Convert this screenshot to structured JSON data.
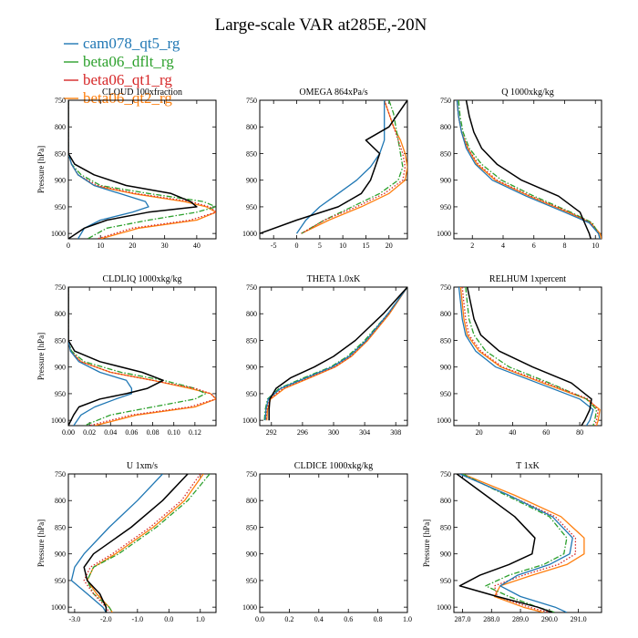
{
  "title": "Large-scale VAR at285E,-20N",
  "legend": [
    {
      "name": "cam078_qt5_rg",
      "color": "#1f77b4",
      "style": "solid"
    },
    {
      "name": "beta06_dflt_rg",
      "color": "#2ca02c",
      "style": "dashdot"
    },
    {
      "name": "beta06_qt1_rg",
      "color": "#d62728",
      "style": "dotted"
    },
    {
      "name": "beta06_qt2_rg",
      "color": "#ff7f0e",
      "style": "solid"
    }
  ],
  "obs_color": "#000000",
  "chart_data": [
    {
      "type": "line",
      "title": "CLOUD 100xfraction",
      "ylabel": "Pressure [hPa]",
      "xlim": [
        0,
        46
      ],
      "ylim": [
        1010,
        750
      ],
      "xticks": [
        0,
        10,
        20,
        30,
        40
      ],
      "xtick_labels": [
        "0",
        "10",
        "20",
        "30",
        "40"
      ],
      "yticks": [
        750,
        800,
        850,
        900,
        950,
        1000
      ],
      "ytick_labels": [
        "750",
        "800",
        "850",
        "900",
        "950",
        "1000"
      ],
      "y": [
        750,
        800,
        850,
        870,
        890,
        910,
        925,
        940,
        950,
        960,
        975,
        990,
        1010
      ],
      "series": [
        {
          "name": "cam078_qt5_rg",
          "values": [
            0,
            0,
            0,
            1,
            3,
            8,
            16,
            24,
            25,
            20,
            10,
            5,
            3
          ]
        },
        {
          "name": "beta06_dflt_rg",
          "values": [
            0,
            0,
            0,
            1,
            4,
            10,
            25,
            42,
            46,
            40,
            25,
            12,
            6
          ]
        },
        {
          "name": "beta06_qt1_rg",
          "values": [
            0,
            0,
            0,
            1,
            3,
            9,
            21,
            38,
            44,
            46,
            38,
            20,
            9
          ]
        },
        {
          "name": "beta06_qt2_rg",
          "values": [
            0,
            0,
            0,
            1,
            3,
            8,
            20,
            36,
            43,
            46,
            40,
            22,
            10
          ]
        }
      ],
      "obs": [
        0,
        0,
        0,
        2,
        8,
        18,
        32,
        38,
        40,
        25,
        12,
        5,
        0
      ]
    },
    {
      "type": "line",
      "title": "OMEGA 864xPa/s",
      "ylabel": "",
      "xlim": [
        -8,
        24
      ],
      "ylim": [
        1010,
        750
      ],
      "xticks": [
        -5,
        0,
        5,
        10,
        15,
        20
      ],
      "xtick_labels": [
        "-5",
        "0",
        "5",
        "10",
        "15",
        "20"
      ],
      "yticks": [
        750,
        800,
        850,
        900,
        950,
        1000
      ],
      "ytick_labels": [
        "750",
        "800",
        "850",
        "900",
        "950",
        "1000"
      ],
      "y": [
        750,
        775,
        800,
        825,
        850,
        875,
        900,
        925,
        950,
        975,
        1000
      ],
      "series": [
        {
          "name": "cam078_qt5_rg",
          "values": [
            19,
            19,
            19,
            19,
            18,
            16,
            13,
            9,
            5,
            2,
            0
          ]
        },
        {
          "name": "beta06_dflt_rg",
          "values": [
            20,
            21,
            21.5,
            22,
            22.5,
            23,
            22,
            18,
            12,
            6,
            1
          ]
        },
        {
          "name": "beta06_qt1_rg",
          "values": [
            19,
            20,
            21,
            22,
            23,
            23.5,
            23,
            19,
            13,
            6,
            1
          ]
        },
        {
          "name": "beta06_qt2_rg",
          "values": [
            19,
            20,
            21,
            22.5,
            23.5,
            24,
            23.5,
            20,
            14,
            7,
            1
          ]
        }
      ],
      "obs": [
        24,
        22,
        20,
        15,
        18,
        17,
        16,
        14,
        9,
        0,
        -8
      ]
    },
    {
      "type": "line",
      "title": "Q 1000xkg/kg",
      "ylabel": "",
      "xlim": [
        0.8,
        10.4
      ],
      "ylim": [
        1010,
        750
      ],
      "xticks": [
        2,
        4,
        6,
        8,
        10
      ],
      "xtick_labels": [
        "2",
        "4",
        "6",
        "8",
        "10"
      ],
      "yticks": [
        750,
        800,
        850,
        900,
        950,
        1000
      ],
      "ytick_labels": [
        "750",
        "800",
        "850",
        "900",
        "950",
        "1000"
      ],
      "y": [
        750,
        780,
        810,
        840,
        870,
        900,
        930,
        960,
        980,
        1000,
        1010
      ],
      "series": [
        {
          "name": "cam078_qt5_rg",
          "values": [
            1.0,
            1.1,
            1.3,
            1.6,
            2.2,
            3.3,
            5.5,
            8.0,
            9.6,
            10.2,
            10.3
          ]
        },
        {
          "name": "beta06_dflt_rg",
          "values": [
            1.1,
            1.2,
            1.4,
            1.8,
            2.6,
            3.9,
            6.0,
            8.4,
            9.8,
            10.2,
            10.3
          ]
        },
        {
          "name": "beta06_qt1_rg",
          "values": [
            1.0,
            1.1,
            1.3,
            1.7,
            2.4,
            3.6,
            5.8,
            8.3,
            9.7,
            10.2,
            10.3
          ]
        },
        {
          "name": "beta06_qt2_rg",
          "values": [
            1.0,
            1.1,
            1.3,
            1.7,
            2.3,
            3.5,
            5.7,
            8.2,
            9.7,
            10.3,
            10.4
          ]
        }
      ],
      "obs": [
        1.6,
        1.8,
        2.1,
        2.6,
        3.6,
        5.2,
        7.6,
        9.0,
        9.3,
        9.6,
        9.7
      ]
    },
    {
      "type": "line",
      "title": "CLDLIQ 1000xkg/kg",
      "ylabel": "Pressure [hPa]",
      "xlim": [
        0,
        0.14
      ],
      "ylim": [
        1010,
        750
      ],
      "xticks": [
        0,
        0.02,
        0.04,
        0.06,
        0.08,
        0.1,
        0.12
      ],
      "xtick_labels": [
        "0.00",
        "0.02",
        "0.04",
        "0.06",
        "0.08",
        "0.10",
        "0.12"
      ],
      "yticks": [
        750,
        800,
        850,
        900,
        950,
        1000
      ],
      "ytick_labels": [
        "750",
        "800",
        "850",
        "900",
        "950",
        "1000"
      ],
      "y": [
        750,
        800,
        850,
        870,
        890,
        910,
        925,
        940,
        950,
        960,
        975,
        990,
        1010
      ],
      "series": [
        {
          "name": "cam078_qt5_rg",
          "values": [
            0,
            0,
            0,
            0.002,
            0.01,
            0.03,
            0.055,
            0.06,
            0.06,
            0.045,
            0.025,
            0.012,
            0.005
          ]
        },
        {
          "name": "beta06_dflt_rg",
          "values": [
            0,
            0,
            0,
            0.003,
            0.015,
            0.05,
            0.09,
            0.12,
            0.13,
            0.12,
            0.08,
            0.04,
            0.015
          ]
        },
        {
          "name": "beta06_qt1_rg",
          "values": [
            0,
            0,
            0,
            0.002,
            0.012,
            0.04,
            0.08,
            0.12,
            0.135,
            0.14,
            0.115,
            0.06,
            0.02
          ]
        },
        {
          "name": "beta06_qt2_rg",
          "values": [
            0,
            0,
            0,
            0.002,
            0.012,
            0.04,
            0.08,
            0.115,
            0.135,
            0.14,
            0.12,
            0.065,
            0.025
          ]
        }
      ],
      "obs": [
        0,
        0,
        0,
        0.006,
        0.03,
        0.07,
        0.09,
        0.075,
        0.055,
        0.03,
        0.01,
        0.005,
        0
      ]
    },
    {
      "type": "line",
      "title": "THETA 1.0xK",
      "ylabel": "",
      "xlim": [
        290.5,
        309.5
      ],
      "ylim": [
        1010,
        750
      ],
      "xticks": [
        292,
        296,
        300,
        304,
        308
      ],
      "xtick_labels": [
        "292",
        "296",
        "300",
        "304",
        "308"
      ],
      "yticks": [
        750,
        800,
        850,
        900,
        950,
        1000
      ],
      "ytick_labels": [
        "750",
        "800",
        "850",
        "900",
        "950",
        "1000"
      ],
      "y": [
        750,
        800,
        850,
        880,
        900,
        920,
        940,
        960,
        980,
        1000
      ],
      "series": [
        {
          "name": "cam078_qt5_rg",
          "values": [
            309.5,
            307,
            304.2,
            302,
            299.8,
            296.5,
            293.2,
            291.6,
            291.3,
            291.2
          ]
        },
        {
          "name": "beta06_dflt_rg",
          "values": [
            309.5,
            307,
            304,
            301.8,
            299.6,
            296.2,
            293,
            291.5,
            291.2,
            291.1
          ]
        },
        {
          "name": "beta06_qt1_rg",
          "values": [
            309.5,
            307.1,
            304.3,
            302.2,
            300.1,
            296.8,
            293.5,
            291.8,
            291.4,
            291.3
          ]
        },
        {
          "name": "beta06_qt2_rg",
          "values": [
            309.5,
            307.2,
            304.4,
            302.3,
            300.2,
            297,
            293.7,
            291.9,
            291.5,
            291.4
          ]
        }
      ],
      "obs": [
        309.5,
        306.4,
        302.8,
        300,
        297.5,
        294.5,
        292.6,
        291.8,
        291.7,
        291.7
      ]
    },
    {
      "type": "line",
      "title": "RELHUM 1xpercent",
      "ylabel": "",
      "xlim": [
        5,
        93
      ],
      "ylim": [
        1010,
        750
      ],
      "xticks": [
        20,
        40,
        60,
        80
      ],
      "xtick_labels": [
        "20",
        "40",
        "60",
        "80"
      ],
      "yticks": [
        750,
        800,
        850,
        900,
        950,
        1000
      ],
      "ytick_labels": [
        "750",
        "800",
        "850",
        "900",
        "950",
        "1000"
      ],
      "y": [
        750,
        780,
        810,
        840,
        870,
        900,
        930,
        960,
        980,
        1000,
        1010
      ],
      "series": [
        {
          "name": "cam078_qt5_rg",
          "values": [
            8,
            9,
            10,
            12,
            18,
            30,
            55,
            80,
            88,
            86,
            84
          ]
        },
        {
          "name": "beta06_dflt_rg",
          "values": [
            12,
            13,
            14,
            17,
            24,
            38,
            62,
            84,
            90,
            89,
            88
          ]
        },
        {
          "name": "beta06_qt1_rg",
          "values": [
            10,
            11,
            12,
            14,
            21,
            34,
            60,
            85,
            91,
            90,
            89
          ]
        },
        {
          "name": "beta06_qt2_rg",
          "values": [
            9,
            10,
            11,
            13,
            20,
            33,
            58,
            84,
            92,
            91,
            90
          ]
        }
      ],
      "obs": [
        13,
        15,
        17,
        21,
        32,
        52,
        75,
        87,
        86,
        83,
        81
      ]
    },
    {
      "type": "line",
      "title": "U 1xm/s",
      "ylabel": "Pressure [hPa]",
      "xlim": [
        -3.2,
        1.5
      ],
      "ylim": [
        1010,
        750
      ],
      "xticks": [
        -3,
        -2,
        -1,
        0,
        1
      ],
      "xtick_labels": [
        "-3.0",
        "-2.0",
        "-1.0",
        "0.0",
        "1.0"
      ],
      "yticks": [
        750,
        800,
        850,
        900,
        950,
        1000
      ],
      "ytick_labels": [
        "750",
        "800",
        "850",
        "900",
        "950",
        "1000"
      ],
      "y": [
        750,
        800,
        850,
        900,
        925,
        950,
        975,
        1000,
        1010
      ],
      "series": [
        {
          "name": "cam078_qt5_rg",
          "values": [
            -0.2,
            -1.0,
            -1.9,
            -2.7,
            -3.0,
            -3.1,
            -2.6,
            -2.1,
            -2.0
          ]
        },
        {
          "name": "beta06_dflt_rg",
          "values": [
            1.3,
            0.6,
            -0.4,
            -1.6,
            -2.4,
            -2.6,
            -2.4,
            -1.9,
            -1.8
          ]
        },
        {
          "name": "beta06_qt1_rg",
          "values": [
            1.0,
            0.4,
            -0.6,
            -1.8,
            -2.5,
            -2.7,
            -2.4,
            -2.0,
            -1.9
          ]
        },
        {
          "name": "beta06_qt2_rg",
          "values": [
            1.1,
            0.5,
            -0.5,
            -1.7,
            -2.4,
            -2.6,
            -2.3,
            -1.9,
            -1.8
          ]
        }
      ],
      "obs": [
        0.6,
        -0.2,
        -1.2,
        -2.4,
        -2.7,
        -2.6,
        -2.2,
        -2.0,
        -2.0
      ]
    },
    {
      "type": "line",
      "title": "CLDICE 1000xkg/kg",
      "ylabel": "",
      "xlim": [
        0,
        1
      ],
      "ylim": [
        1010,
        750
      ],
      "xticks": [
        0,
        0.2,
        0.4,
        0.6,
        0.8,
        1
      ],
      "xtick_labels": [
        "0.0",
        "0.2",
        "0.4",
        "0.6",
        "0.8",
        "1.0"
      ],
      "yticks": [
        750,
        800,
        850,
        900,
        950,
        1000
      ],
      "ytick_labels": [
        "750",
        "800",
        "850",
        "900",
        "950",
        "1000"
      ],
      "y": [],
      "series": [],
      "obs": []
    },
    {
      "type": "line",
      "title": "T 1xK",
      "ylabel": "Pressure [hPa]",
      "xlim": [
        286.7,
        291.8
      ],
      "ylim": [
        1010,
        750
      ],
      "xticks": [
        287,
        288,
        289,
        290,
        291
      ],
      "xtick_labels": [
        "287.0",
        "288.0",
        "289.0",
        "290.0",
        "291.0"
      ],
      "yticks": [
        750,
        800,
        850,
        900,
        950,
        1000
      ],
      "ytick_labels": [
        "750",
        "800",
        "850",
        "900",
        "950",
        "1000"
      ],
      "y": [
        750,
        790,
        830,
        870,
        900,
        920,
        940,
        960,
        980,
        1000,
        1010
      ],
      "series": [
        {
          "name": "cam078_qt5_rg",
          "values": [
            286.9,
            288.6,
            290.1,
            290.8,
            290.7,
            290.0,
            288.9,
            288.3,
            289.0,
            290.2,
            290.6
          ]
        },
        {
          "name": "beta06_dflt_rg",
          "values": [
            287.0,
            288.5,
            290.0,
            290.6,
            290.5,
            289.8,
            288.6,
            287.8,
            288.6,
            289.6,
            290.2
          ]
        },
        {
          "name": "beta06_qt1_rg",
          "values": [
            286.9,
            288.6,
            290.2,
            290.9,
            290.9,
            290.3,
            289.1,
            288.1,
            288.2,
            289.3,
            290.0
          ]
        },
        {
          "name": "beta06_qt2_rg",
          "values": [
            287.0,
            288.8,
            290.4,
            291.2,
            291.2,
            290.6,
            289.4,
            288.3,
            288.1,
            289.1,
            289.8
          ]
        }
      ],
      "obs": [
        286.8,
        287.8,
        288.8,
        289.5,
        289.4,
        288.6,
        287.6,
        286.9,
        288.2,
        289.6,
        290.1
      ]
    }
  ]
}
